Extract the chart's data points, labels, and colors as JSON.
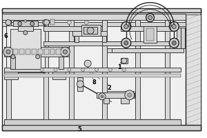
{
  "bg_color": "#ffffff",
  "line_color": "#555555",
  "dark_line": "#222222",
  "light_gray": "#cccccc",
  "mid_gray": "#999999",
  "fill_light": "#e8e8e8",
  "fill_mid": "#d0d0d0",
  "figsize": [
    3.0,
    2.0
  ],
  "dpi": 100
}
